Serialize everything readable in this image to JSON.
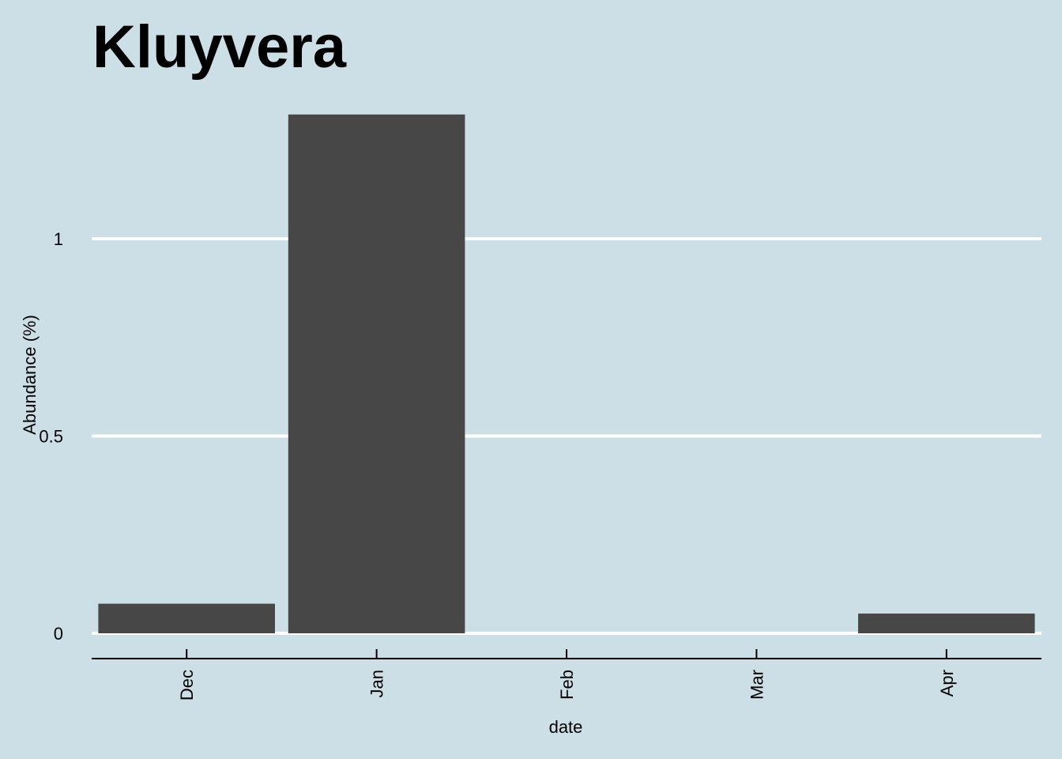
{
  "chart_data": {
    "type": "bar",
    "title": "Kluyvera",
    "xlabel": "date",
    "ylabel": "Abundance (%)",
    "categories": [
      "Dec",
      "Jan",
      "Feb",
      "Mar",
      "Apr"
    ],
    "values": [
      0.075,
      1.315,
      0,
      0,
      0.05
    ],
    "ylim": [
      0,
      1.33
    ],
    "yticks": [
      0,
      0.5,
      1
    ],
    "ytick_labels": [
      "0",
      "0.5",
      "1"
    ],
    "grid": "horizontal",
    "colors": {
      "background": "#cddfe6",
      "bar": "#474747",
      "grid": "#ffffff",
      "axis": "#000000"
    }
  }
}
